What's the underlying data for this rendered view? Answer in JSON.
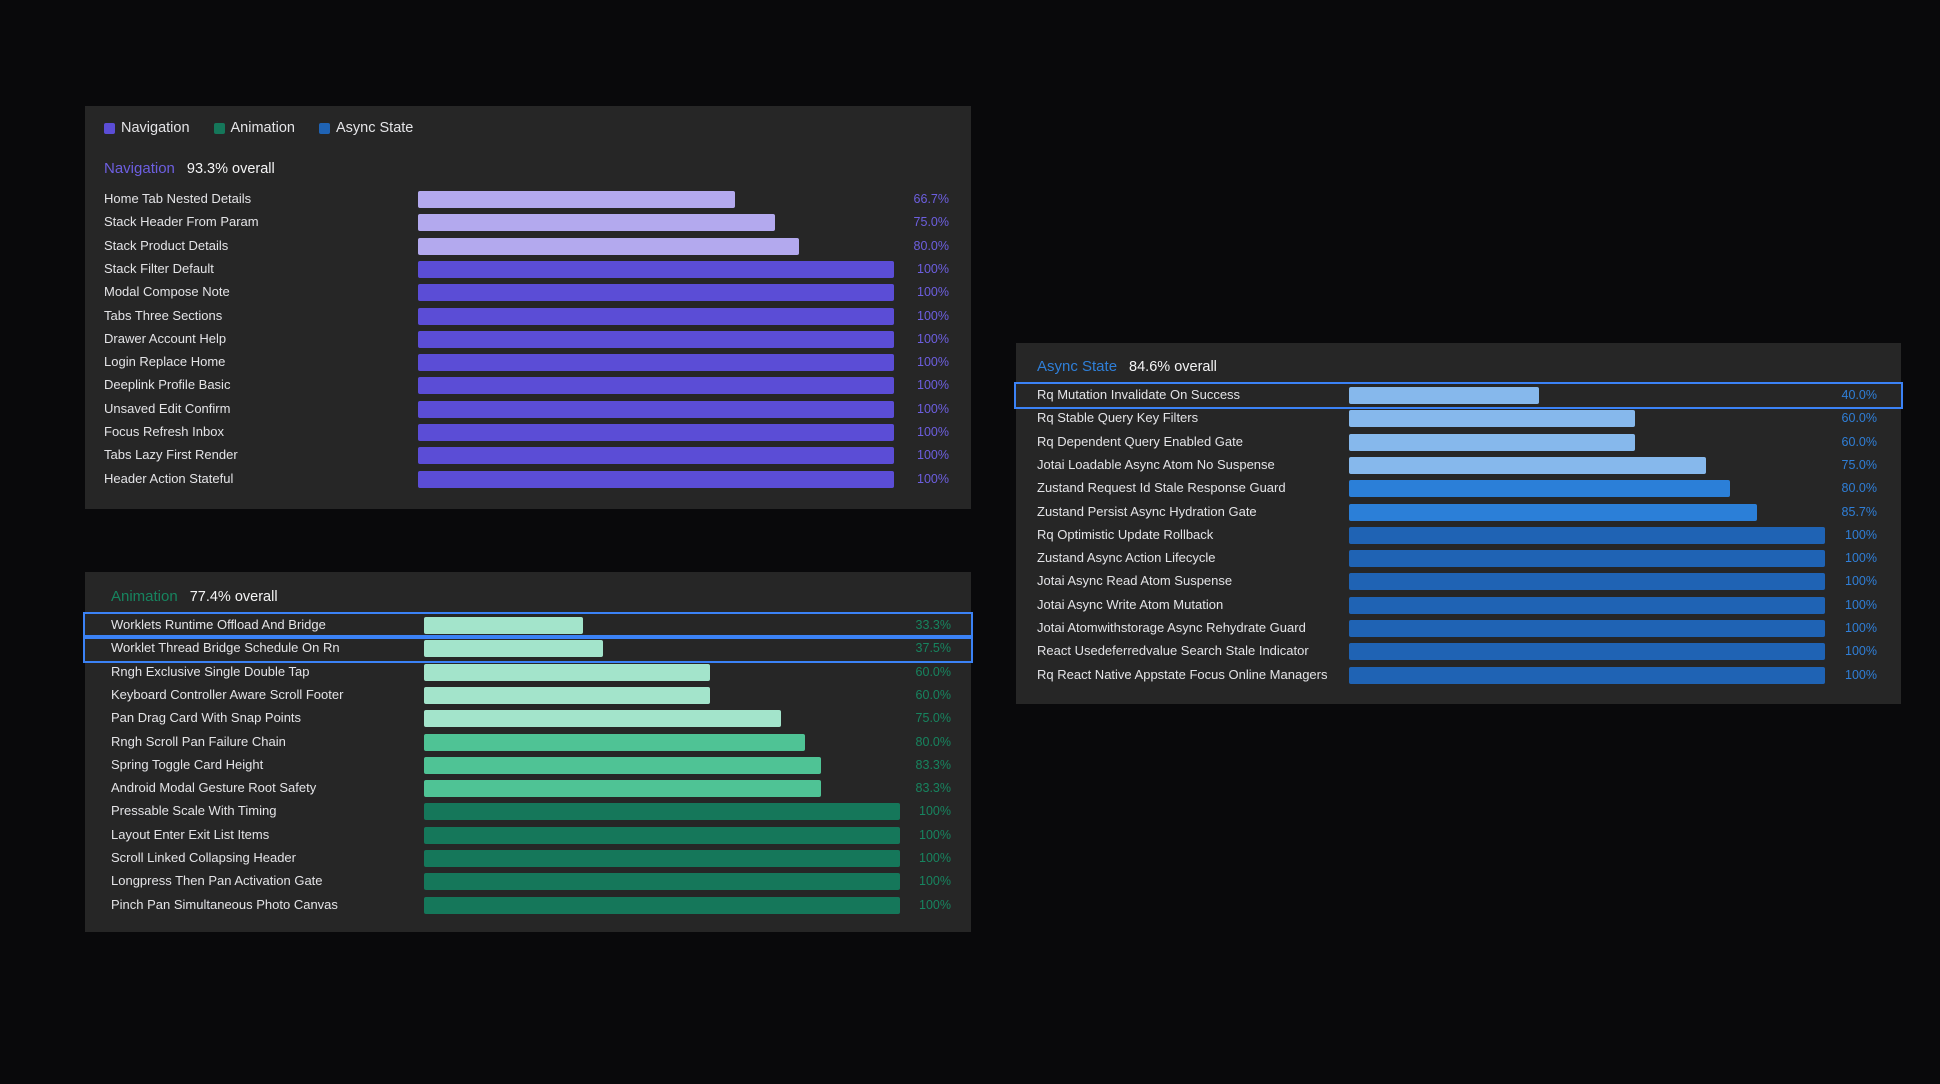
{
  "legend": [
    {
      "label": "Navigation",
      "color": "#5b4dd6"
    },
    {
      "label": "Animation",
      "color": "#15775a"
    },
    {
      "label": "Async State",
      "color": "#1f63b4"
    }
  ],
  "chart_data": [
    {
      "type": "bar",
      "orientation": "horizontal",
      "title": "Navigation",
      "overall": "93.3% overall",
      "accent": "#6d5fe0",
      "colors": {
        "low": "#b3a9ee",
        "high": "#5b4dd6"
      },
      "xlim": [
        0,
        100
      ],
      "categories": [
        "Home Tab Nested Details",
        "Stack Header From Param",
        "Stack Product Details",
        "Stack Filter Default",
        "Modal Compose Note",
        "Tabs Three Sections",
        "Drawer Account Help",
        "Login Replace Home",
        "Deeplink Profile Basic",
        "Unsaved Edit Confirm",
        "Focus Refresh Inbox",
        "Tabs Lazy First Render",
        "Header Action Stateful"
      ],
      "values": [
        66.7,
        75.0,
        80.0,
        100,
        100,
        100,
        100,
        100,
        100,
        100,
        100,
        100,
        100
      ],
      "value_labels": [
        "66.7%",
        "75.0%",
        "80.0%",
        "100%",
        "100%",
        "100%",
        "100%",
        "100%",
        "100%",
        "100%",
        "100%",
        "100%",
        "100%"
      ],
      "highlighted": []
    },
    {
      "type": "bar",
      "orientation": "horizontal",
      "title": "Animation",
      "overall": "77.4% overall",
      "accent": "#17845f",
      "colors": {
        "low": "#a3e4cb",
        "mid": "#4fc395",
        "high": "#15775a"
      },
      "xlim": [
        0,
        100
      ],
      "categories": [
        "Worklets Runtime Offload And Bridge",
        "Worklet Thread Bridge Schedule On Rn",
        "Rngh Exclusive Single Double Tap",
        "Keyboard Controller Aware Scroll Footer",
        "Pan Drag Card With Snap Points",
        "Rngh Scroll Pan Failure Chain",
        "Spring Toggle Card Height",
        "Android Modal Gesture Root Safety",
        "Pressable Scale With Timing",
        "Layout Enter Exit List Items",
        "Scroll Linked Collapsing Header",
        "Longpress Then Pan Activation Gate",
        "Pinch Pan Simultaneous Photo Canvas"
      ],
      "values": [
        33.3,
        37.5,
        60.0,
        60.0,
        75.0,
        80.0,
        83.3,
        83.3,
        100,
        100,
        100,
        100,
        100
      ],
      "value_labels": [
        "33.3%",
        "37.5%",
        "60.0%",
        "60.0%",
        "75.0%",
        "80.0%",
        "83.3%",
        "83.3%",
        "100%",
        "100%",
        "100%",
        "100%",
        "100%"
      ],
      "highlighted": [
        0,
        1
      ]
    },
    {
      "type": "bar",
      "orientation": "horizontal",
      "title": "Async State",
      "overall": "84.6% overall",
      "accent": "#2f7fd8",
      "colors": {
        "low": "#86b8ec",
        "mid": "#2b7fd8",
        "high": "#1f63b4"
      },
      "xlim": [
        0,
        100
      ],
      "categories": [
        "Rq Mutation Invalidate On Success",
        "Rq Stable Query Key Filters",
        "Rq Dependent Query Enabled Gate",
        "Jotai Loadable Async Atom No Suspense",
        "Zustand Request Id Stale Response Guard",
        "Zustand Persist Async Hydration Gate",
        "Rq Optimistic Update Rollback",
        "Zustand Async Action Lifecycle",
        "Jotai Async Read Atom Suspense",
        "Jotai Async Write Atom Mutation",
        "Jotai Atomwithstorage Async Rehydrate Guard",
        "React Usedeferredvalue Search Stale Indicator",
        "Rq React Native Appstate Focus Online Managers"
      ],
      "values": [
        40.0,
        60.0,
        60.0,
        75.0,
        80.0,
        85.7,
        100,
        100,
        100,
        100,
        100,
        100,
        100
      ],
      "value_labels": [
        "40.0%",
        "60.0%",
        "60.0%",
        "75.0%",
        "80.0%",
        "85.7%",
        "100%",
        "100%",
        "100%",
        "100%",
        "100%",
        "100%",
        "100%"
      ],
      "highlighted": [
        0
      ]
    }
  ]
}
